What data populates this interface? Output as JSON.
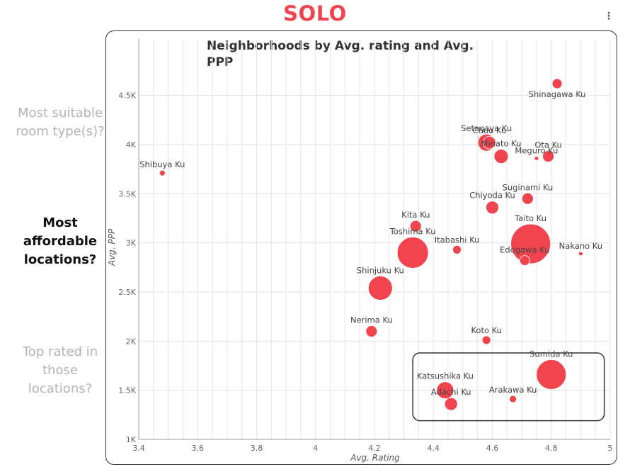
{
  "header": {
    "title": "SOLO"
  },
  "sidebar": {
    "questions": [
      {
        "line1": "Most suitable",
        "line2": "room type(s)?",
        "state": "dim"
      },
      {
        "line1": "Most",
        "line2": "affordable",
        "line3": "locations?",
        "state": "active"
      },
      {
        "line1": "Top rated in",
        "line2": "those",
        "line3": "locations?",
        "state": "dim"
      }
    ]
  },
  "chart_data": {
    "type": "scatter",
    "title_line1": "Neighborhoods by Avg. rating and Avg.",
    "title_line2": "PPP",
    "xlabel": "Avg. Rating",
    "ylabel": "Avg. PPP",
    "xlim": [
      3.4,
      5.0
    ],
    "ylim": [
      1000,
      4750
    ],
    "x_ticks": [
      3.4,
      3.6,
      3.8,
      4,
      4.2,
      4.4,
      4.6,
      4.8,
      5
    ],
    "x_tick_labels": [
      "3.4",
      "3.6",
      "3.8",
      "4",
      "4.2",
      "4.4",
      "4.6",
      "4.8",
      "5"
    ],
    "y_ticks": [
      1000,
      1500,
      2000,
      2500,
      3000,
      3500,
      4000,
      4500
    ],
    "y_tick_labels": [
      "1K",
      "1.5K",
      "2K",
      "2.5K",
      "3K",
      "3.5K",
      "4K",
      "4.5K"
    ],
    "grid": true,
    "marker_color": "#f0454f",
    "points": [
      {
        "name": "Shinagawa Ku",
        "x": 4.82,
        "y": 4620,
        "size": 7,
        "label_pos": "below"
      },
      {
        "name": "Setagaya Ku",
        "x": 4.58,
        "y": 4020,
        "size": 12,
        "label_pos": "above"
      },
      {
        "name": "Chuo Ku",
        "x": 4.59,
        "y": 4020,
        "size": 9,
        "label_pos": "above"
      },
      {
        "name": "Minato Ku",
        "x": 4.63,
        "y": 3880,
        "size": 10,
        "label_pos": "above"
      },
      {
        "name": "Ota Ku",
        "x": 4.79,
        "y": 3880,
        "size": 8,
        "label_pos": "above"
      },
      {
        "name": "Meguro Ku",
        "x": 4.75,
        "y": 3860,
        "size": 3,
        "label_pos": "above"
      },
      {
        "name": "Shibuya Ku",
        "x": 3.48,
        "y": 3710,
        "size": 4,
        "label_pos": "above"
      },
      {
        "name": "Suginami Ku",
        "x": 4.72,
        "y": 3450,
        "size": 8,
        "label_pos": "above"
      },
      {
        "name": "Chiyoda Ku",
        "x": 4.6,
        "y": 3360,
        "size": 9,
        "label_pos": "above"
      },
      {
        "name": "Kita Ku",
        "x": 4.34,
        "y": 3170,
        "size": 8,
        "label_pos": "above"
      },
      {
        "name": "Taito Ku",
        "x": 4.73,
        "y": 2990,
        "size": 28,
        "label_pos": "above"
      },
      {
        "name": "Toshima Ku",
        "x": 4.33,
        "y": 2900,
        "size": 22,
        "label_pos": "above"
      },
      {
        "name": "Itabashi Ku",
        "x": 4.48,
        "y": 2930,
        "size": 6,
        "label_pos": "above"
      },
      {
        "name": "Nakano Ku",
        "x": 4.9,
        "y": 2890,
        "size": 3,
        "label_pos": "above"
      },
      {
        "name": "Edogawa Ku",
        "x": 4.71,
        "y": 2820,
        "size": 7,
        "label_pos": "above"
      },
      {
        "name": "Shinjuku Ku",
        "x": 4.22,
        "y": 2540,
        "size": 17,
        "label_pos": "above"
      },
      {
        "name": "Nerima Ku",
        "x": 4.19,
        "y": 2100,
        "size": 8,
        "label_pos": "above"
      },
      {
        "name": "Koto Ku",
        "x": 4.58,
        "y": 2010,
        "size": 6,
        "label_pos": "above"
      },
      {
        "name": "Sumida Ku",
        "x": 4.8,
        "y": 1660,
        "size": 21,
        "label_pos": "above"
      },
      {
        "name": "Katsushika Ku",
        "x": 4.44,
        "y": 1500,
        "size": 12,
        "label_pos": "above"
      },
      {
        "name": "Adachi Ku",
        "x": 4.46,
        "y": 1360,
        "size": 9,
        "label_pos": "above"
      },
      {
        "name": "Arakawa Ku",
        "x": 4.67,
        "y": 1410,
        "size": 5,
        "label_pos": "above"
      }
    ],
    "highlight_box": {
      "x_from": 4.33,
      "x_to": 4.98,
      "y_from": 1190,
      "y_to": 1880
    }
  }
}
